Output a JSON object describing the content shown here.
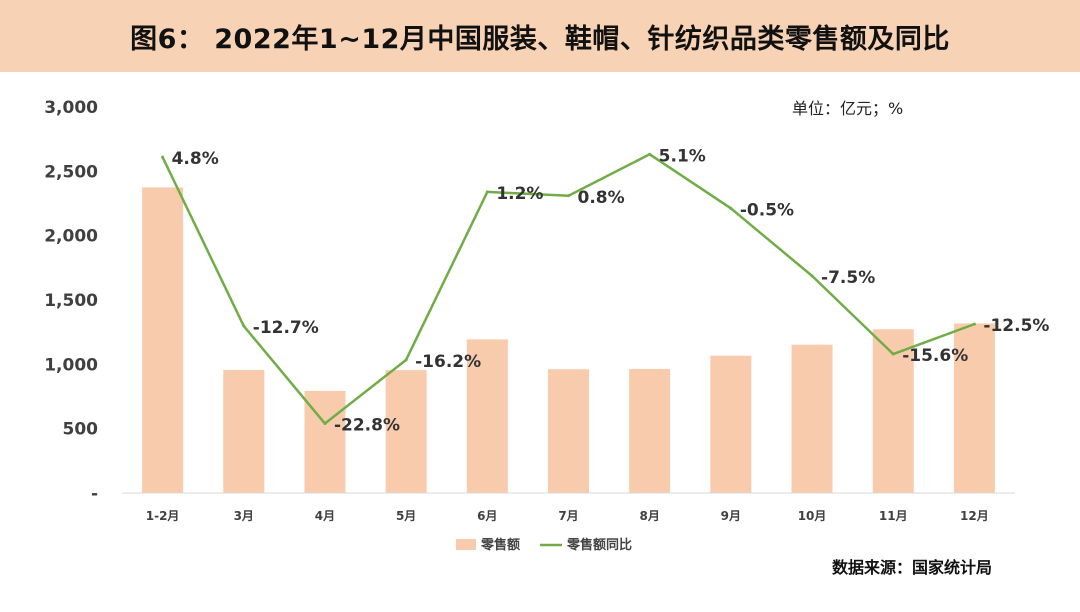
{
  "title": "图6： 2022年1~12月中国服装、鞋帽、针纺织品类零售额及同比",
  "unit_label": "单位：亿元；%",
  "source": "数据来源：国家统计局",
  "colors": {
    "bar": "#f8cbad",
    "line": "#70ad47",
    "title_bg": "#f8d2b4"
  },
  "chart_data": {
    "type": "bar",
    "categories": [
      "1-2月",
      "3月",
      "4月",
      "5月",
      "6月",
      "7月",
      "8月",
      "9月",
      "10月",
      "11月",
      "12月"
    ],
    "y_ticks": [
      "-",
      "500",
      "1,000",
      "1,500",
      "2,000",
      "2,500",
      "3,000"
    ],
    "ylim": [
      0,
      3000
    ],
    "y2lim": [
      -30,
      10
    ],
    "grid": false,
    "legend_position": "bottom",
    "series": [
      {
        "name": "零售额",
        "type": "bar",
        "values": [
          2375,
          956,
          793,
          955,
          1194,
          962,
          964,
          1067,
          1153,
          1273,
          1318
        ]
      },
      {
        "name": "零售额同比",
        "type": "line",
        "axis": "secondary",
        "values": [
          4.8,
          -12.7,
          -22.8,
          -16.2,
          1.2,
          0.8,
          5.1,
          -0.5,
          -7.5,
          -15.6,
          -12.5
        ],
        "labels": [
          "4.8%",
          "-12.7%",
          "-22.8%",
          "-16.2%",
          "1.2%",
          "0.8%",
          "5.1%",
          "-0.5%",
          "-7.5%",
          "-15.6%",
          "-12.5%"
        ]
      }
    ]
  }
}
